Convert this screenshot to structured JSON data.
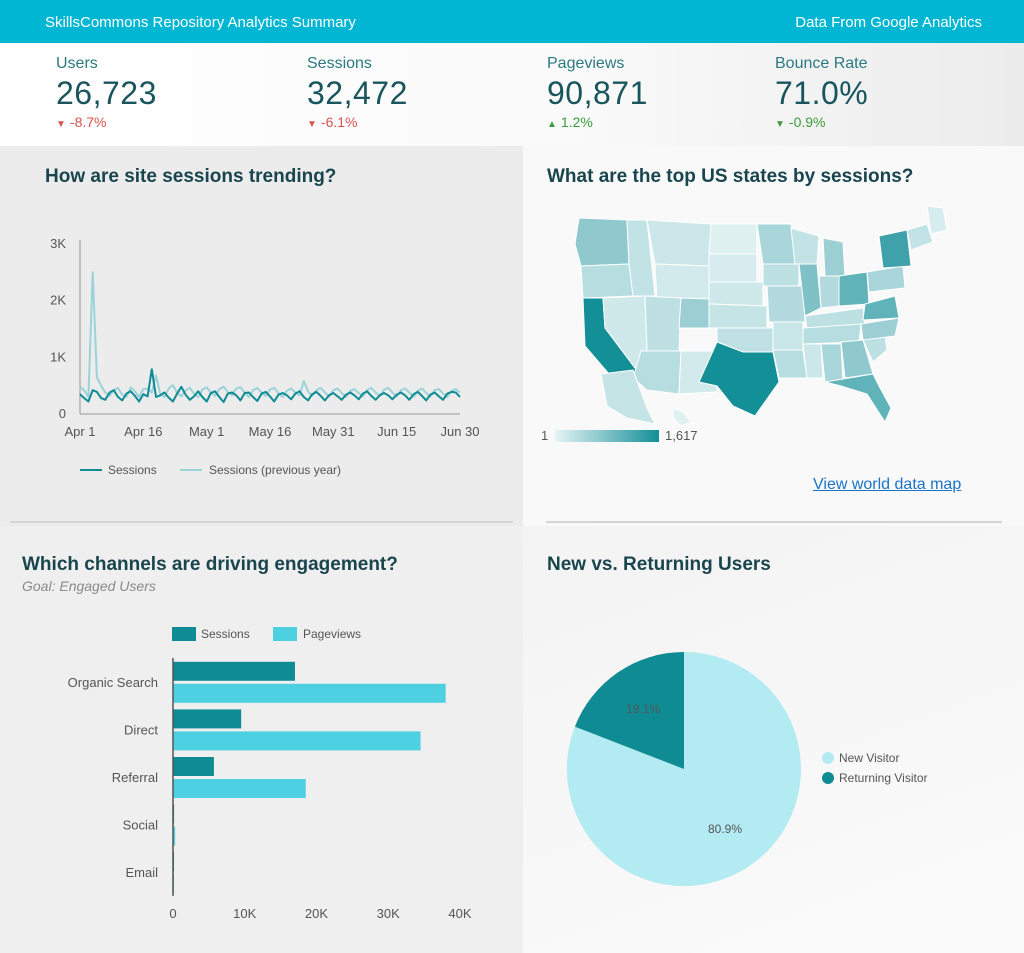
{
  "header": {
    "title": "SkillsCommons Repository Analytics Summary",
    "source": "Data From Google Analytics"
  },
  "kpis": [
    {
      "label": "Users",
      "value": "26,723",
      "change": "-8.7%",
      "direction": "down"
    },
    {
      "label": "Sessions",
      "value": "32,472",
      "change": "-6.1%",
      "direction": "down"
    },
    {
      "label": "Pageviews",
      "value": "90,871",
      "change": "1.2%",
      "direction": "up"
    },
    {
      "label": "Bounce Rate",
      "value": "71.0%",
      "change": "-0.9%",
      "direction": "down"
    }
  ],
  "colors": {
    "brand": "#00b6d3",
    "dark_teal": "#0f8b94",
    "light_teal": "#4dd0e1",
    "pale_teal": "#9bd3d8",
    "pie_light": "#b2ebf2",
    "down": "#d9534f",
    "up": "#3c9b3c"
  },
  "sessions_trend": {
    "title": "How are site sessions trending?",
    "chart_data": {
      "type": "line",
      "x_ticks": [
        "Apr 1",
        "Apr 16",
        "May 1",
        "May 16",
        "May 31",
        "Jun 15",
        "Jun 30"
      ],
      "y_ticks": [
        "0",
        "1K",
        "2K",
        "3K"
      ],
      "ylim": [
        0,
        3000
      ],
      "series": [
        {
          "name": "Sessions",
          "values": [
            350,
            280,
            220,
            420,
            390,
            280,
            250,
            380,
            420,
            300,
            240,
            360,
            400,
            320,
            220,
            350,
            310,
            790,
            300,
            330,
            380,
            290,
            220,
            360,
            480,
            340,
            250,
            310,
            400,
            300,
            220,
            370,
            400,
            300,
            210,
            360,
            380,
            330,
            240,
            370,
            380,
            300,
            230,
            360,
            390,
            310,
            220,
            340,
            370,
            330,
            260,
            360,
            400,
            300,
            240,
            350,
            390,
            320,
            240,
            330,
            370,
            310,
            250,
            340,
            380,
            330,
            260,
            360,
            400,
            320,
            250,
            330,
            370,
            330,
            260,
            340,
            380,
            330,
            250,
            350,
            390,
            320,
            240,
            340,
            380,
            310,
            250,
            360,
            390,
            380,
            300
          ]
        },
        {
          "name": "Sessions (previous year)",
          "values": [
            480,
            420,
            300,
            2500,
            650,
            500,
            380,
            320,
            420,
            460,
            340,
            300,
            470,
            400,
            300,
            440,
            450,
            380,
            680,
            360,
            300,
            450,
            510,
            380,
            310,
            420,
            460,
            360,
            300,
            430,
            470,
            380,
            320,
            440,
            480,
            390,
            330,
            450,
            470,
            380,
            300,
            420,
            460,
            380,
            320,
            430,
            460,
            370,
            300,
            410,
            450,
            380,
            330,
            580,
            400,
            320,
            420,
            460,
            380,
            310,
            420,
            450,
            370,
            300,
            410,
            440,
            370,
            310,
            420,
            460,
            380,
            320,
            430,
            460,
            380,
            310,
            420,
            450,
            380,
            300,
            410,
            450,
            370,
            310,
            420,
            440,
            360,
            300,
            410,
            440,
            380
          ]
        }
      ]
    }
  },
  "us_map": {
    "title": "What are the top US states by sessions?",
    "legend_min": "1",
    "legend_max": "1,617",
    "link": "View world data map"
  },
  "channels": {
    "title": "Which channels are driving engagement?",
    "subtitle": "Goal: Engaged Users",
    "chart_data": {
      "type": "bar",
      "orientation": "horizontal",
      "categories": [
        "Organic Search",
        "Direct",
        "Referral",
        "Social",
        "Email"
      ],
      "series": [
        {
          "name": "Sessions",
          "values": [
            17000,
            9500,
            5700,
            150,
            50
          ]
        },
        {
          "name": "Pageviews",
          "values": [
            38000,
            34500,
            18500,
            300,
            100
          ]
        }
      ],
      "x_ticks": [
        "0",
        "10K",
        "20K",
        "30K",
        "40K"
      ],
      "xlim": [
        0,
        40000
      ]
    }
  },
  "users_pie": {
    "title": "New vs. Returning Users",
    "chart_data": {
      "type": "pie",
      "slices": [
        {
          "name": "New Visitor",
          "value": 80.9,
          "label": "80.9%"
        },
        {
          "name": "Returning Visitor",
          "value": 19.1,
          "label": "19.1%"
        }
      ]
    }
  }
}
